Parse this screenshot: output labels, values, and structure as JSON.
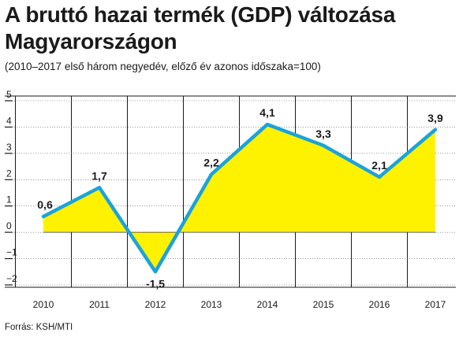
{
  "title": "A bruttó hazai termék (GDP) változása Magyarországon",
  "subtitle": "(2010–2017 első három negyedév, előző év azonos időszaka=100)",
  "source": "Forrás: KSH/MTI",
  "chart_data": {
    "type": "area",
    "categories": [
      "2010",
      "2011",
      "2012",
      "2013",
      "2014",
      "2015",
      "2016",
      "2017"
    ],
    "values": [
      0.6,
      1.7,
      -1.5,
      2.2,
      4.1,
      3.3,
      2.1,
      3.9
    ],
    "data_labels": [
      "0,6",
      "1,7",
      "-1,5",
      "2,2",
      "4,1",
      "3,3",
      "2,1",
      "3,9"
    ],
    "y_ticks": [
      {
        "value": 5,
        "label": "5"
      },
      {
        "value": 4,
        "label": "4"
      },
      {
        "value": 3,
        "label": "3"
      },
      {
        "value": 2,
        "label": "2"
      },
      {
        "value": 1,
        "label": "1"
      },
      {
        "value": 0,
        "label": "0"
      },
      {
        "value": -1,
        "label": "−1"
      },
      {
        "value": -2,
        "label": "−2"
      }
    ],
    "ylim": [
      -2,
      5
    ],
    "grid": true,
    "colors": {
      "fill": "#fff200",
      "line": "#1aa3dc",
      "grid": "#1a1a1a"
    }
  }
}
